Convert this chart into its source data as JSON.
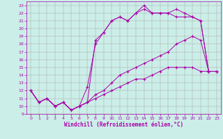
{
  "xlabel": "Windchill (Refroidissement éolien,°C)",
  "background_color": "#cceee8",
  "line_color": "#aa00aa",
  "xlim": [
    -0.5,
    23.5
  ],
  "ylim": [
    9,
    23.5
  ],
  "yticks": [
    9,
    10,
    11,
    12,
    13,
    14,
    15,
    16,
    17,
    18,
    19,
    20,
    21,
    22,
    23
  ],
  "xticks": [
    0,
    1,
    2,
    3,
    4,
    5,
    6,
    7,
    8,
    9,
    10,
    11,
    12,
    13,
    14,
    15,
    16,
    17,
    18,
    19,
    20,
    21,
    22,
    23
  ],
  "line1_x": [
    0,
    1,
    2,
    3,
    4,
    5,
    6,
    7,
    8,
    9,
    10,
    11,
    12,
    13,
    14,
    15,
    16,
    17,
    18,
    19,
    20,
    21,
    22,
    23
  ],
  "line1_y": [
    12,
    10.5,
    11,
    10,
    10.5,
    9.5,
    10,
    10.5,
    11,
    11.5,
    12,
    12.5,
    13,
    13.5,
    13.5,
    14,
    14.5,
    15,
    15,
    15,
    15,
    14.5,
    14.5,
    14.5
  ],
  "line2_x": [
    0,
    1,
    2,
    3,
    4,
    5,
    6,
    7,
    8,
    9,
    10,
    11,
    12,
    13,
    14,
    15,
    16,
    17,
    18,
    19,
    20,
    21,
    22,
    23
  ],
  "line2_y": [
    12,
    10.5,
    11,
    10,
    10.5,
    9.5,
    10,
    10.5,
    11.5,
    12,
    13,
    14,
    14.5,
    15,
    15.5,
    16,
    16.5,
    17,
    18,
    18.5,
    19,
    18.5,
    14.5,
    14.5
  ],
  "line3_x": [
    0,
    1,
    2,
    3,
    4,
    5,
    6,
    7,
    8,
    9,
    10,
    11,
    12,
    13,
    14,
    15,
    16,
    17,
    18,
    19,
    20,
    21,
    22,
    23
  ],
  "line3_y": [
    12,
    10.5,
    11,
    10,
    10.5,
    9.5,
    10,
    12.5,
    18,
    19.5,
    21,
    21.5,
    21,
    22,
    22.5,
    22,
    22,
    22,
    21.5,
    21.5,
    21.5,
    21,
    14.5,
    14.5
  ],
  "line4_x": [
    0,
    1,
    2,
    3,
    4,
    5,
    6,
    7,
    8,
    9,
    10,
    11,
    12,
    13,
    14,
    15,
    16,
    17,
    18,
    19,
    20,
    21,
    22,
    23
  ],
  "line4_y": [
    12,
    10.5,
    11,
    10,
    10.5,
    9.5,
    10,
    10.5,
    18.5,
    19.5,
    21,
    21.5,
    21,
    22,
    23,
    22,
    22,
    22,
    22.5,
    22,
    21.5,
    21,
    14.5,
    14.5
  ]
}
